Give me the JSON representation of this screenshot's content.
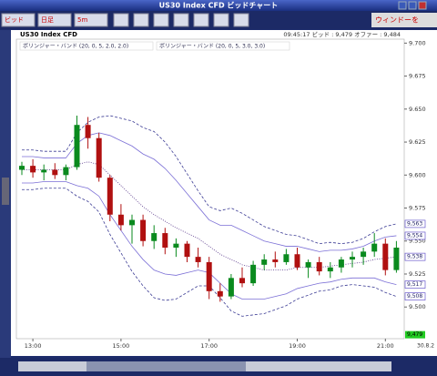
{
  "window": {
    "title": "US30 Index CFD ビッドチャート",
    "toolbar": [
      "ビッド",
      "日足",
      "5m"
    ],
    "toolbar_right": "ウィンドーを"
  },
  "chart_data": {
    "type": "candlestick",
    "title": "US30 Index CFD",
    "info": "09:45:17  ビッド : 9,479  オファー : 9,484",
    "categories": [
      null,
      "13:00",
      null,
      null,
      null,
      null,
      null,
      null,
      null,
      "15:00",
      null,
      null,
      null,
      null,
      null,
      null,
      null,
      "17:00",
      null,
      null,
      null,
      null,
      null,
      null,
      null,
      "19:00",
      null,
      null,
      null,
      null,
      null,
      null,
      null,
      "21:00",
      null
    ],
    "open": [
      9604,
      9607,
      9602,
      9604,
      9600,
      9606,
      9638,
      9628,
      9598,
      9570,
      9562,
      9566,
      9550,
      9556,
      9545,
      9548,
      9538,
      9534,
      9512,
      9508,
      9522,
      9518,
      9532,
      9536,
      9534,
      9540,
      9530,
      9534,
      9527,
      9530,
      9536,
      9538,
      9542,
      9548,
      9528
    ],
    "high": [
      9610,
      9612,
      9608,
      9609,
      9608,
      9645,
      9644,
      9632,
      9600,
      9578,
      9570,
      9570,
      9562,
      9560,
      9552,
      9550,
      9545,
      9538,
      9518,
      9525,
      9530,
      9535,
      9540,
      9542,
      9544,
      9545,
      9536,
      9538,
      9534,
      9538,
      9542,
      9545,
      9556,
      9552,
      9550
    ],
    "low": [
      9600,
      9598,
      9596,
      9597,
      9596,
      9604,
      9620,
      9595,
      9565,
      9558,
      9548,
      9546,
      9544,
      9540,
      9538,
      9534,
      9530,
      9506,
      9504,
      9506,
      9515,
      9516,
      9528,
      9530,
      9532,
      9528,
      9522,
      9524,
      9522,
      9526,
      9530,
      9532,
      9538,
      9524,
      9526
    ],
    "close": [
      9607,
      9602,
      9604,
      9600,
      9606,
      9638,
      9628,
      9598,
      9570,
      9562,
      9566,
      9550,
      9556,
      9545,
      9548,
      9538,
      9534,
      9512,
      9508,
      9522,
      9518,
      9532,
      9536,
      9534,
      9540,
      9530,
      9534,
      9527,
      9530,
      9536,
      9538,
      9542,
      9548,
      9528,
      9545
    ],
    "up_color": "#0a8a1e",
    "down_color": "#b01010",
    "indicators": [
      {
        "name": "ボリンジャー・バンド (20, 0, 5, 2.0, 2.0)",
        "color": "#7b6fd6",
        "dash": false,
        "middle": [
          9604,
          9604,
          9604,
          9604,
          9604,
          9608,
          9610,
          9608,
          9600,
          9592,
          9584,
          9576,
          9570,
          9565,
          9560,
          9556,
          9552,
          9546,
          9540,
          9536,
          9532,
          9530,
          9528,
          9528,
          9528,
          9530,
          9530,
          9530,
          9531,
          9532,
          9533,
          9534,
          9536,
          9537,
          9538
        ],
        "upper": [
          9614,
          9614,
          9613,
          9613,
          9613,
          9624,
          9630,
          9632,
          9630,
          9626,
          9622,
          9616,
          9612,
          9605,
          9596,
          9586,
          9576,
          9566,
          9562,
          9562,
          9558,
          9554,
          9550,
          9548,
          9546,
          9546,
          9544,
          9542,
          9543,
          9543,
          9544,
          9546,
          9550,
          9553,
          9554
        ],
        "lower": [
          9594,
          9594,
          9595,
          9595,
          9595,
          9592,
          9590,
          9584,
          9570,
          9558,
          9546,
          9536,
          9528,
          9525,
          9524,
          9526,
          9528,
          9526,
          9518,
          9510,
          9506,
          9506,
          9506,
          9508,
          9510,
          9514,
          9516,
          9518,
          9519,
          9521,
          9522,
          9522,
          9522,
          9519,
          9517
        ]
      },
      {
        "name": "ボリンジャー・バンド (20, 0, 5, 3.0, 3.0)",
        "color": "#3b3b94",
        "dash": true,
        "upper": [
          9619,
          9619,
          9618,
          9618,
          9618,
          9632,
          9640,
          9644,
          9645,
          9643,
          9641,
          9636,
          9633,
          9625,
          9614,
          9601,
          9588,
          9576,
          9573,
          9575,
          9571,
          9566,
          9561,
          9558,
          9555,
          9554,
          9551,
          9548,
          9549,
          9548,
          9549,
          9552,
          9557,
          9561,
          9563
        ],
        "lower": [
          9589,
          9589,
          9590,
          9590,
          9590,
          9584,
          9580,
          9572,
          9555,
          9541,
          9527,
          9516,
          9507,
          9505,
          9506,
          9511,
          9516,
          9516,
          9507,
          9497,
          9493,
          9494,
          9495,
          9498,
          9501,
          9506,
          9509,
          9512,
          9513,
          9516,
          9517,
          9516,
          9515,
          9511,
          9508
        ]
      }
    ],
    "ylim": [
      9476,
      9703
    ],
    "yticks": [
      {
        "value": 9700,
        "label": "9.700"
      },
      {
        "value": 9675,
        "label": "9.675"
      },
      {
        "value": 9650,
        "label": "9.650"
      },
      {
        "value": 9625,
        "label": "9.625"
      },
      {
        "value": 9600,
        "label": "9.600"
      },
      {
        "value": 9575,
        "label": "9.575"
      },
      {
        "value": 9550,
        "label": "9.550"
      },
      {
        "value": 9525,
        "label": "9.525"
      },
      {
        "value": 9500,
        "label": "9.500"
      }
    ],
    "price_labels": [
      {
        "value": 9563,
        "label": "9,563"
      },
      {
        "value": 9554,
        "label": "9,554"
      },
      {
        "value": 9538,
        "label": "9,538"
      },
      {
        "value": 9517,
        "label": "9,517"
      },
      {
        "value": 9508,
        "label": "9,508"
      }
    ],
    "last_price": {
      "value": 9479,
      "label": "9,479"
    },
    "date_label": "30.8.2"
  }
}
